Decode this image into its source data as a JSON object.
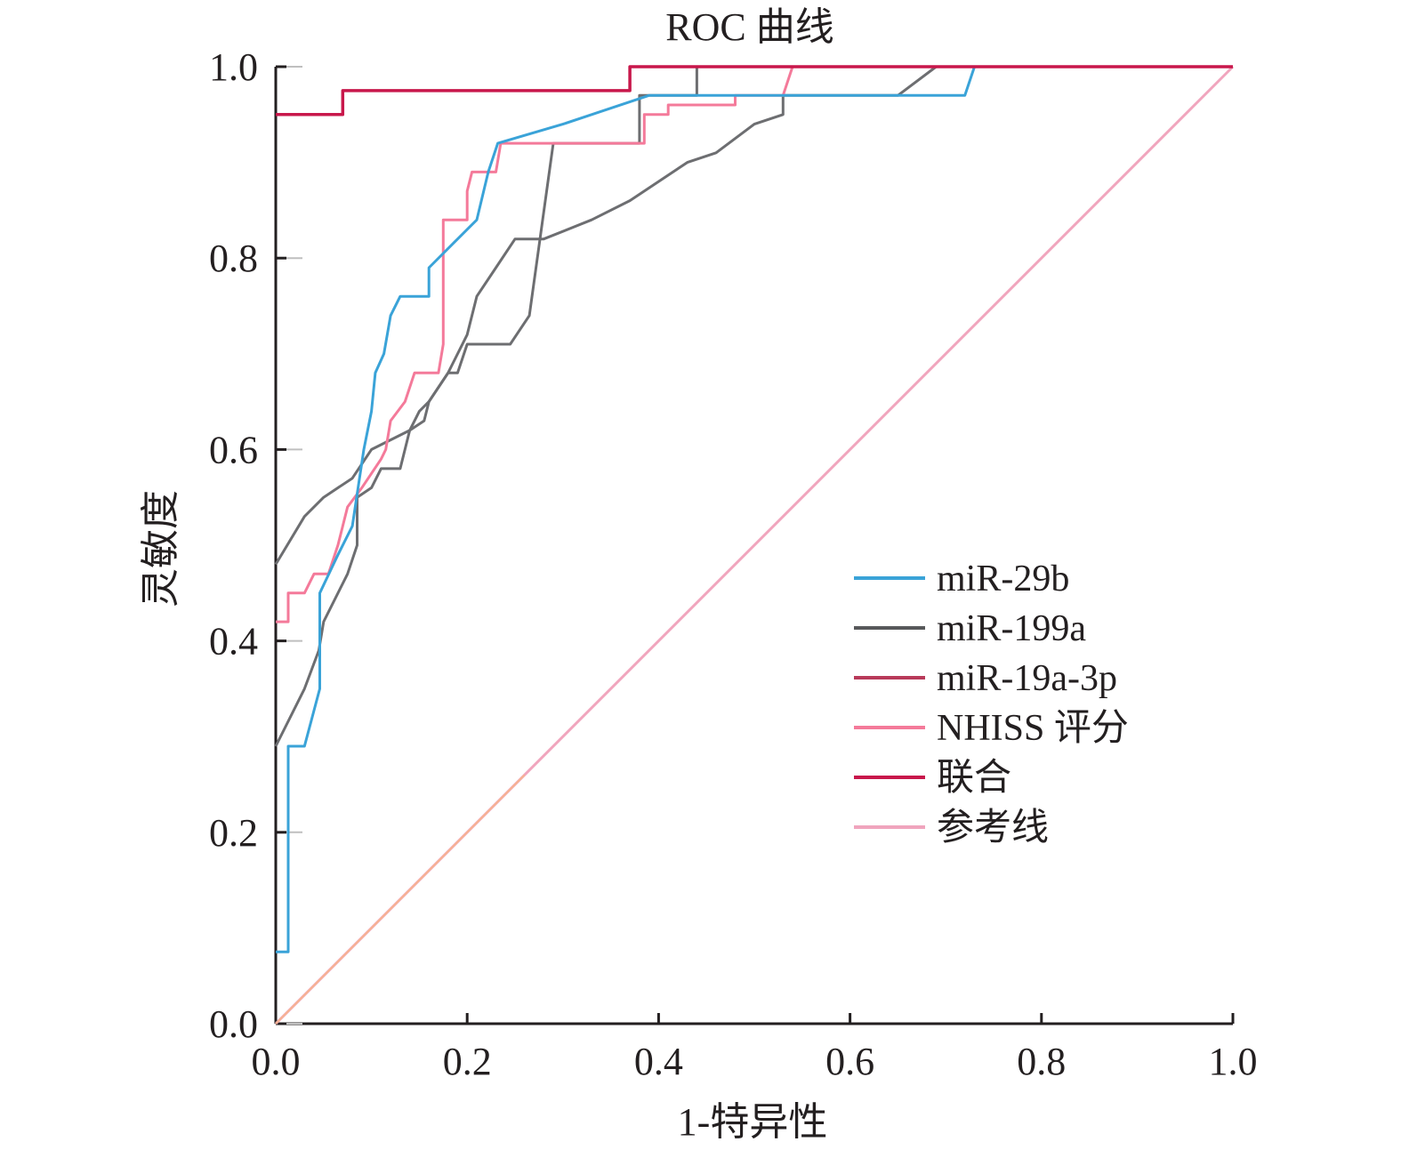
{
  "chart_data": {
    "type": "line",
    "title": "ROC 曲线",
    "xlabel": "1-特异性",
    "ylabel": "灵敏度",
    "xlim": [
      0,
      1
    ],
    "ylim": [
      0,
      1
    ],
    "x_ticks": [
      "0.0",
      "0.2",
      "0.4",
      "0.6",
      "0.8",
      "1.0"
    ],
    "y_ticks": [
      "0.0",
      "0.2",
      "0.4",
      "0.6",
      "0.8",
      "1.0"
    ],
    "grid": false,
    "legend_position": "right",
    "series": [
      {
        "name": "miR-29b",
        "color": "#3aa3d8",
        "points": [
          [
            0,
            0.075
          ],
          [
            0.013,
            0.075
          ],
          [
            0.013,
            0.29
          ],
          [
            0.03,
            0.29
          ],
          [
            0.046,
            0.35
          ],
          [
            0.046,
            0.45
          ],
          [
            0.065,
            0.49
          ],
          [
            0.08,
            0.52
          ],
          [
            0.092,
            0.6
          ],
          [
            0.1,
            0.64
          ],
          [
            0.104,
            0.68
          ],
          [
            0.113,
            0.7
          ],
          [
            0.12,
            0.74
          ],
          [
            0.13,
            0.76
          ],
          [
            0.16,
            0.76
          ],
          [
            0.16,
            0.79
          ],
          [
            0.2,
            0.83
          ],
          [
            0.21,
            0.84
          ],
          [
            0.222,
            0.89
          ],
          [
            0.232,
            0.92
          ],
          [
            0.3,
            0.94
          ],
          [
            0.39,
            0.97
          ],
          [
            0.72,
            0.97
          ],
          [
            0.73,
            1.0
          ],
          [
            1.0,
            1.0
          ]
        ]
      },
      {
        "name": "miR-199a",
        "color": "#6d6e71",
        "points": [
          [
            0,
            0.29
          ],
          [
            0.03,
            0.35
          ],
          [
            0.045,
            0.39
          ],
          [
            0.05,
            0.42
          ],
          [
            0.075,
            0.47
          ],
          [
            0.085,
            0.5
          ],
          [
            0.085,
            0.55
          ],
          [
            0.1,
            0.56
          ],
          [
            0.11,
            0.58
          ],
          [
            0.13,
            0.58
          ],
          [
            0.14,
            0.62
          ],
          [
            0.155,
            0.63
          ],
          [
            0.16,
            0.65
          ],
          [
            0.18,
            0.68
          ],
          [
            0.19,
            0.68
          ],
          [
            0.2,
            0.71
          ],
          [
            0.245,
            0.71
          ],
          [
            0.265,
            0.74
          ],
          [
            0.29,
            0.92
          ],
          [
            0.38,
            0.92
          ],
          [
            0.38,
            0.97
          ],
          [
            0.44,
            0.97
          ],
          [
            0.44,
            1.0
          ],
          [
            1.0,
            1.0
          ]
        ]
      },
      {
        "name": "miR-19a-3p",
        "color": "#6d6e71",
        "points": [
          [
            0,
            0.48
          ],
          [
            0.03,
            0.53
          ],
          [
            0.05,
            0.55
          ],
          [
            0.08,
            0.57
          ],
          [
            0.1,
            0.6
          ],
          [
            0.12,
            0.61
          ],
          [
            0.14,
            0.62
          ],
          [
            0.15,
            0.64
          ],
          [
            0.16,
            0.65
          ],
          [
            0.18,
            0.68
          ],
          [
            0.2,
            0.72
          ],
          [
            0.21,
            0.76
          ],
          [
            0.23,
            0.79
          ],
          [
            0.25,
            0.82
          ],
          [
            0.28,
            0.82
          ],
          [
            0.33,
            0.84
          ],
          [
            0.37,
            0.86
          ],
          [
            0.4,
            0.88
          ],
          [
            0.43,
            0.9
          ],
          [
            0.46,
            0.91
          ],
          [
            0.5,
            0.94
          ],
          [
            0.53,
            0.95
          ],
          [
            0.53,
            0.97
          ],
          [
            0.65,
            0.97
          ],
          [
            0.69,
            1.0
          ],
          [
            1.0,
            1.0
          ]
        ]
      },
      {
        "name": "NHISS 评分",
        "color": "#f47a9a",
        "points": [
          [
            0,
            0.42
          ],
          [
            0.013,
            0.42
          ],
          [
            0.013,
            0.45
          ],
          [
            0.03,
            0.45
          ],
          [
            0.04,
            0.47
          ],
          [
            0.055,
            0.47
          ],
          [
            0.065,
            0.5
          ],
          [
            0.075,
            0.54
          ],
          [
            0.09,
            0.56
          ],
          [
            0.11,
            0.59
          ],
          [
            0.115,
            0.6
          ],
          [
            0.12,
            0.63
          ],
          [
            0.135,
            0.65
          ],
          [
            0.145,
            0.68
          ],
          [
            0.17,
            0.68
          ],
          [
            0.175,
            0.71
          ],
          [
            0.175,
            0.84
          ],
          [
            0.2,
            0.84
          ],
          [
            0.2,
            0.87
          ],
          [
            0.205,
            0.89
          ],
          [
            0.23,
            0.89
          ],
          [
            0.235,
            0.92
          ],
          [
            0.35,
            0.92
          ],
          [
            0.385,
            0.92
          ],
          [
            0.385,
            0.95
          ],
          [
            0.41,
            0.95
          ],
          [
            0.41,
            0.96
          ],
          [
            0.48,
            0.96
          ],
          [
            0.48,
            0.97
          ],
          [
            0.53,
            0.97
          ],
          [
            0.54,
            1.0
          ],
          [
            1.0,
            1.0
          ]
        ]
      },
      {
        "name": "联合",
        "color": "#c8174b",
        "points": [
          [
            0,
            0.95
          ],
          [
            0.07,
            0.95
          ],
          [
            0.07,
            0.975
          ],
          [
            0.37,
            0.975
          ],
          [
            0.37,
            1.0
          ],
          [
            1.0,
            1.0
          ]
        ]
      },
      {
        "name": "参考线",
        "color": "#f0a5bd",
        "points": [
          [
            0,
            0
          ],
          [
            1,
            1
          ]
        ]
      }
    ]
  },
  "legend": [
    {
      "label": "miR-29b",
      "color": "#3aa3d8"
    },
    {
      "label": "miR-199a",
      "color": "#58595b"
    },
    {
      "label": "miR-19a-3p",
      "color": "#b83a5a"
    },
    {
      "label": "NHISS 评分",
      "color": "#f47a9a"
    },
    {
      "label": "联合",
      "color": "#c8174b"
    },
    {
      "label": "参考线",
      "color": "#f0a5bd"
    }
  ],
  "ref_tint_color": "#f7b58c",
  "frame_color": "#231f20"
}
